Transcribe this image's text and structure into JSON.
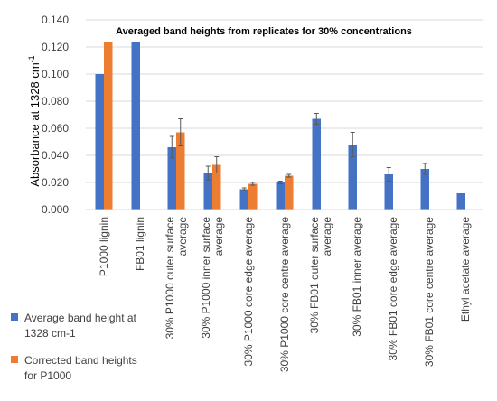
{
  "chart_data": {
    "type": "bar",
    "title": "Averaged band heights from replicates for 30% concentrations",
    "ylabel": "Absorbance at 1328 cm-1",
    "ylabel_prefix": "Absorbance at 1328 cm",
    "ylabel_superscript": "-1",
    "xlabel": "",
    "ylim": [
      0,
      0.14
    ],
    "yticks": [
      "0.000",
      "0.020",
      "0.040",
      "0.060",
      "0.080",
      "0.100",
      "0.120",
      "0.140"
    ],
    "grid": true,
    "legend_position": "bottom-left",
    "categories": [
      [
        "P1000 lignin"
      ],
      [
        "FB01 lignin"
      ],
      [
        "30% P1000 outer surface",
        "average"
      ],
      [
        "30% P1000 inner surface",
        "average"
      ],
      [
        "30% P1000 core edge average"
      ],
      [
        "30% P1000 core centre average"
      ],
      [
        "30% FB01 outer surface",
        "average"
      ],
      [
        "30% FB01 inner average"
      ],
      [
        "30% FB01 core edge average"
      ],
      [
        "30% FB01 core centre average"
      ],
      [
        "Ethyl acetate average"
      ]
    ],
    "series": [
      {
        "name": "Average band height at 1328 cm-1",
        "color": "#4472c4",
        "values": [
          0.1,
          0.124,
          0.046,
          0.027,
          0.015,
          0.02,
          0.067,
          0.048,
          0.026,
          0.03,
          0.012
        ],
        "errors": [
          null,
          null,
          0.008,
          0.005,
          0.001,
          0.001,
          0.004,
          0.009,
          0.005,
          0.004,
          null
        ]
      },
      {
        "name": "Corrected band heights for P1000",
        "color": "#ed7d31",
        "values": [
          0.124,
          null,
          0.057,
          0.033,
          0.019,
          0.025,
          null,
          null,
          null,
          null,
          null
        ],
        "errors": [
          null,
          null,
          0.01,
          0.006,
          0.001,
          0.001,
          null,
          null,
          null,
          null,
          null
        ]
      }
    ]
  }
}
